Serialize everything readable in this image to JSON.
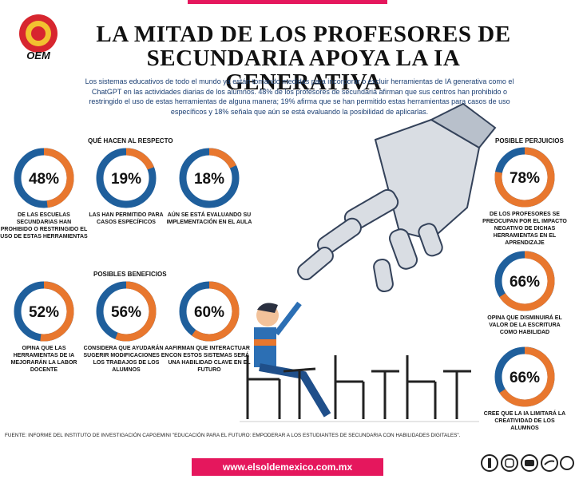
{
  "header": {
    "logo": "OEM",
    "title_line1": "LA MITAD DE LOS PROFESORES DE",
    "title_line2": "SECUNDARIA APOYA LA IA GENERATIVA",
    "intro": "Los sistemas educativos de todo el mundo ya están tomando medidas para incorporar o excluir herramientas de IA generativa como el ChatGPT en las actividades diarias de los alumnos. 48% de los profesores de secundaria afirman que sus centros han prohibido o restringido el uso de estas herramientas de alguna manera; 19% afirma que se han permitido estas herramientas para casos de uso específicos y 18% señala que aún se está evaluando la posibilidad de aplicarlas."
  },
  "sections": [
    {
      "title": "QUÉ HACEN AL RESPECTO",
      "items": [
        {
          "value": 48,
          "value_label": "48%",
          "caption": "DE LAS ESCUELAS SECUNDARIAS HAN PROHIBIDO O RESTRINGIDO EL USO DE ESTAS HERRAMIENTAS"
        },
        {
          "value": 19,
          "value_label": "19%",
          "caption": "LAS HAN PERMITIDO PARA CASOS ESPECÍFICOS"
        },
        {
          "value": 18,
          "value_label": "18%",
          "caption": "AÚN SE ESTÁ EVALUANDO SU IMPLEMENTACIÓN EN EL AULA"
        }
      ]
    },
    {
      "title": "POSIBLES BENEFICIOS",
      "items": [
        {
          "value": 52,
          "value_label": "52%",
          "caption": "OPINA QUE LAS HERRAMIENTAS DE IA MEJORARÁN LA LABOR DOCENTE"
        },
        {
          "value": 56,
          "value_label": "56%",
          "caption": "CONSIDERA QUE AYUDARÁN A SUGERIR MODIFICACIONES EN LOS TRABAJOS DE LOS ALUMNOS"
        },
        {
          "value": 60,
          "value_label": "60%",
          "caption": "AFIRMAN QUE INTERACTUAR CON ESTOS SISTEMAS SERÁ UNA HABILIDAD CLAVE EN EL FUTURO"
        }
      ]
    },
    {
      "title": "POSIBLE PERJUICIOS",
      "items": [
        {
          "value": 78,
          "value_label": "78%",
          "caption": "DE LOS PROFESORES SE PREOCUPAN POR EL IMPACTO NEGATIVO DE DICHAS HERRAMIENTAS EN EL APRENDIZAJE"
        },
        {
          "value": 66,
          "value_label": "66%",
          "caption": "OPINA QUE DISMINUIRÁ EL VALOR DE LA ESCRITURA COMO HABILIDAD"
        },
        {
          "value": 66,
          "value_label": "66%",
          "caption": "CREE QUE LA IA LIMITARÁ LA CREATIVIDAD DE LOS ALUMNOS"
        }
      ]
    }
  ],
  "footer": {
    "source": "FUENTE: INFORME DEL INSTITUTO DE INVESTIGACIÓN CAPGEMINI \"EDUCACIÓN PARA EL FUTURO: EMPODERAR A LOS ESTUDIANTES DE SECUNDARIA CON HABILIDADES DIGITALES\".",
    "url": "www.elsoldemexico.com.mx"
  }
}
